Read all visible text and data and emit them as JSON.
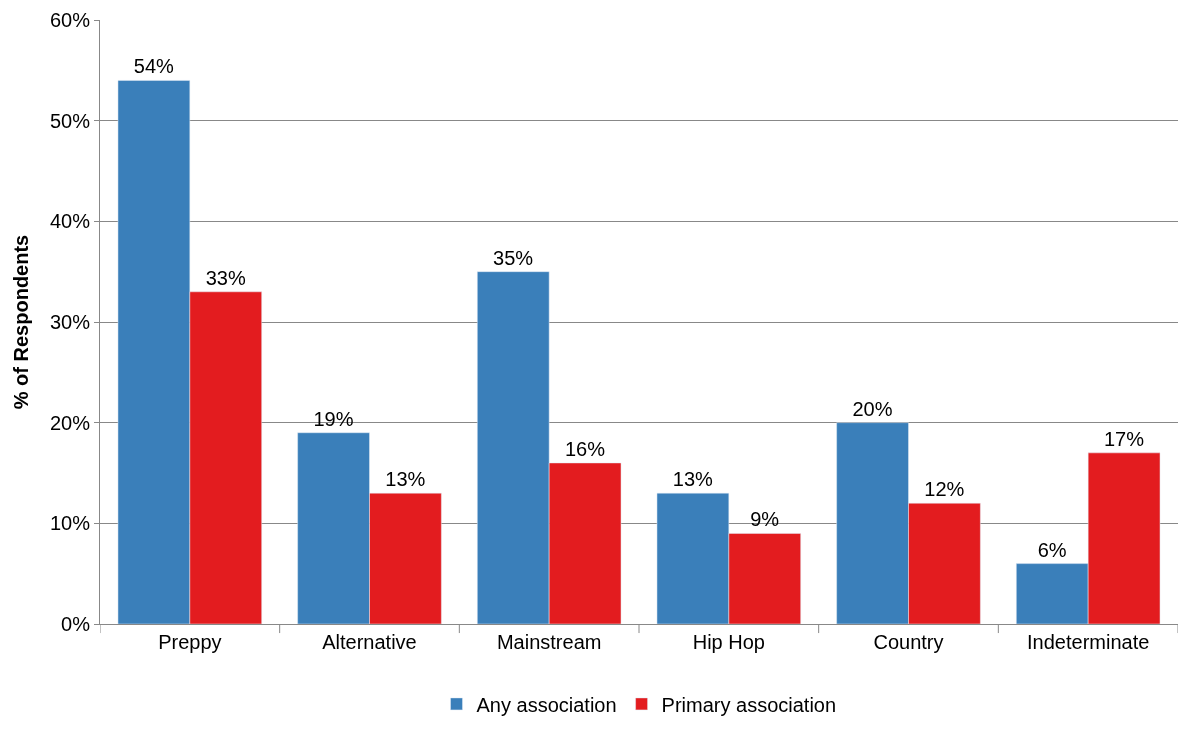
{
  "chart_data": {
    "type": "bar",
    "ylabel": "% of Respondents",
    "categories": [
      "Preppy",
      "Alternative",
      "Mainstream",
      "Hip Hop",
      "Country",
      "Indeterminate"
    ],
    "series": [
      {
        "name": "Any association",
        "color": "#3a7fba",
        "values": [
          54,
          19,
          35,
          13,
          20,
          6
        ],
        "value_labels": [
          "54%",
          "19%",
          "35%",
          "13%",
          "20%",
          "6%"
        ]
      },
      {
        "name": "Primary association",
        "color": "#e31c1f",
        "values": [
          33,
          13,
          16,
          9,
          12,
          17
        ],
        "value_labels": [
          "33%",
          "13%",
          "16%",
          "9%",
          "12%",
          "17%"
        ]
      }
    ],
    "ylim": [
      0,
      60
    ],
    "yticks": [
      {
        "value": 0,
        "label": "0%"
      },
      {
        "value": 10,
        "label": "10%"
      },
      {
        "value": 20,
        "label": "20%"
      },
      {
        "value": 30,
        "label": "30%"
      },
      {
        "value": 40,
        "label": "40%"
      },
      {
        "value": 50,
        "label": "50%"
      },
      {
        "value": 60,
        "label": "60%"
      }
    ],
    "grid": "y",
    "legend": "bottom"
  }
}
